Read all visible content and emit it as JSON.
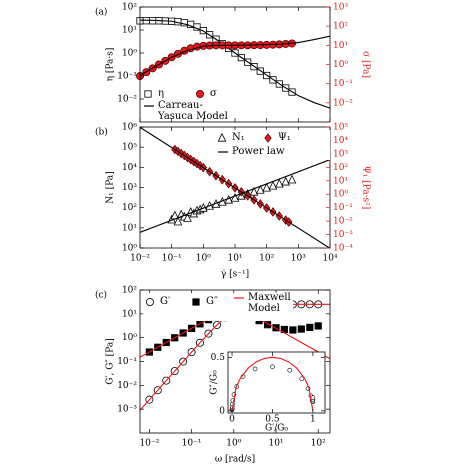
{
  "chart_data": [
    {
      "type": "scatter",
      "label": "(a)",
      "ylabel": "η [Pa·s]",
      "y2label": "σ [Pa]",
      "xlog": true,
      "ylog": true,
      "y2log": true,
      "xlim": [
        0.01,
        10000
      ],
      "ylim": [
        0.001,
        100
      ],
      "yticks": [
        {
          "value": 0.01,
          "label": "10⁻²"
        },
        {
          "value": 0.1,
          "label": "10⁻¹"
        },
        {
          "value": 1,
          "label": "10⁰"
        },
        {
          "value": 10,
          "label": "10¹"
        },
        {
          "value": 100,
          "label": "10²"
        }
      ],
      "y2lim": [
        0.001,
        1000
      ],
      "y2ticks": [
        {
          "value": 0.01,
          "label": "10⁻²"
        },
        {
          "value": 0.1,
          "label": "10⁻¹"
        },
        {
          "value": 1,
          "label": "10⁰"
        },
        {
          "value": 10,
          "label": "10¹"
        },
        {
          "value": 100,
          "label": "10²"
        },
        {
          "value": 1000,
          "label": "10³"
        }
      ],
      "series": [
        {
          "name": "η",
          "marker": "square-open",
          "color": "#000000",
          "x": [
            0.01,
            0.0158,
            0.0251,
            0.0398,
            0.0631,
            0.1,
            0.158,
            0.251,
            0.398,
            0.631,
            1,
            1.58,
            2.51,
            3.98,
            6.31,
            10,
            15.8,
            25.1,
            39.8,
            63.1,
            100,
            158,
            251,
            398,
            631
          ],
          "values": [
            25,
            25.3,
            25.1,
            25.1,
            24.6,
            24,
            22.8,
            20.7,
            17.6,
            13.5,
            9.4,
            6.2,
            3.98,
            2.51,
            1.58,
            1.0,
            0.63,
            0.4,
            0.256,
            0.163,
            0.105,
            0.068,
            0.045,
            0.03,
            0.02
          ]
        },
        {
          "name": "Carreau-Yasuca Model",
          "style": "line",
          "color": "#000000",
          "x": [
            0.01,
            0.0316,
            0.1,
            0.316,
            1,
            3.16,
            10,
            31.6,
            100,
            316,
            1000,
            3162,
            10000
          ],
          "values": [
            27,
            26,
            24,
            17,
            9,
            3.2,
            1.0,
            0.33,
            0.11,
            0.037,
            0.014,
            0.007,
            0.004
          ]
        },
        {
          "name": "σ",
          "marker": "circle-filled",
          "color": "#e41a1c",
          "axis": "y2",
          "x": [
            0.01,
            0.0158,
            0.0251,
            0.0398,
            0.0631,
            0.1,
            0.158,
            0.251,
            0.398,
            0.631,
            1,
            1.58,
            2.51,
            3.98,
            6.31,
            10,
            15.8,
            25.1,
            39.8,
            63.1,
            100,
            158,
            251,
            398,
            631
          ],
          "values": [
            0.25,
            0.4,
            0.63,
            1.0,
            1.55,
            2.4,
            3.6,
            5.2,
            7.0,
            8.5,
            9.4,
            9.8,
            10,
            10,
            10,
            10,
            10,
            10,
            10.2,
            10.3,
            10.5,
            10.8,
            11.2,
            11.8,
            12.5
          ]
        },
        {
          "style": "line",
          "color": "#000000",
          "axis": "y2",
          "x": [
            0.01,
            0.0316,
            0.1,
            0.316,
            1,
            3.16,
            10,
            31.6,
            100,
            316,
            1000,
            3162,
            10000
          ],
          "values": [
            0.27,
            0.82,
            2.4,
            5.4,
            9,
            10.1,
            10,
            10.4,
            11,
            11.7,
            14,
            20,
            30
          ]
        }
      ]
    },
    {
      "type": "scatter",
      "label": "(b)",
      "xlabel": "γ̇ [s⁻¹]",
      "ylabel": "N₁ [Pa]",
      "y2label": "Ψ₁ [Pa·s²]",
      "xlog": true,
      "ylog": true,
      "y2log": true,
      "xlim": [
        0.01,
        10000
      ],
      "xticks": [
        {
          "value": 0.01,
          "label": "10⁻²"
        },
        {
          "value": 0.1,
          "label": "10⁻¹"
        },
        {
          "value": 1,
          "label": "10⁰"
        },
        {
          "value": 10,
          "label": "10¹"
        },
        {
          "value": 100,
          "label": "10²"
        },
        {
          "value": 1000,
          "label": "10³"
        },
        {
          "value": 10000,
          "label": "10⁴"
        }
      ],
      "ylim": [
        1,
        1000000
      ],
      "yticks": [
        {
          "value": 1,
          "label": "10⁰"
        },
        {
          "value": 10,
          "label": "10¹"
        },
        {
          "value": 100,
          "label": "10²"
        },
        {
          "value": 1000,
          "label": "10³"
        },
        {
          "value": 10000,
          "label": "10⁴"
        },
        {
          "value": 100000,
          "label": "10⁵"
        },
        {
          "value": 1000000,
          "label": "10⁶"
        }
      ],
      "y2lim": [
        0.0001,
        100000
      ],
      "y2ticks": [
        {
          "value": 0.0001,
          "label": "10⁻⁴"
        },
        {
          "value": 0.001,
          "label": "10⁻³"
        },
        {
          "value": 0.01,
          "label": "10⁻²"
        },
        {
          "value": 0.1,
          "label": "10⁻¹"
        },
        {
          "value": 1,
          "label": "10⁰"
        },
        {
          "value": 10,
          "label": "10¹"
        },
        {
          "value": 100,
          "label": "10²"
        },
        {
          "value": 1000,
          "label": "10³"
        },
        {
          "value": 10000,
          "label": "10⁴"
        },
        {
          "value": 100000,
          "label": "10⁵"
        }
      ],
      "series": [
        {
          "name": "N₁",
          "marker": "triangle-open",
          "color": "#000000",
          "x": [
            0.1,
            0.126,
            0.158,
            0.2,
            0.251,
            0.316,
            0.398,
            0.5,
            0.631,
            0.794,
            1,
            1.58,
            2.51,
            3.98,
            6.31,
            10,
            15.8,
            25.1,
            39.8,
            63.1,
            100,
            158,
            251,
            398,
            631
          ],
          "values": [
            25,
            40,
            20,
            45,
            35,
            30,
            60,
            50,
            70,
            80,
            95,
            120,
            150,
            190,
            240,
            300,
            380,
            470,
            600,
            750,
            950,
            1200,
            1500,
            1900,
            2400
          ]
        },
        {
          "name": "Ψ₁",
          "marker": "diamond-filled",
          "color": "#e41a1c",
          "axis": "y2",
          "x": [
            0.126,
            0.158,
            0.2,
            0.251,
            0.316,
            0.398,
            0.5,
            0.631,
            0.794,
            1,
            1.58,
            2.51,
            3.98,
            6.31,
            10,
            15.8,
            25.1,
            39.8,
            63.1,
            100,
            158,
            251,
            398,
            500
          ],
          "values": [
            2130,
            1510,
            1060,
            755,
            534,
            378,
            269,
            190,
            134,
            95,
            47.9,
            23.9,
            12,
            6.0,
            3.0,
            1.51,
            0.755,
            0.378,
            0.19,
            0.095,
            0.0479,
            0.0239,
            0.012,
            0.0085
          ]
        },
        {
          "name": "Power law",
          "style": "line",
          "color": "#000000",
          "x": [
            0.01,
            10000
          ],
          "values": [
            6,
            23900
          ]
        },
        {
          "style": "line",
          "color": "#000000",
          "axis": "y2",
          "x": [
            0.01,
            10000
          ],
          "values": [
            95000,
            9.5e-05
          ]
        }
      ]
    },
    {
      "type": "scatter",
      "label": "(c)",
      "xlabel": "ω [rad/s]",
      "ylabel": "G′, G″ [Pa]",
      "xlog": true,
      "ylog": true,
      "xlim": [
        0.006,
        190
      ],
      "xticks": [
        {
          "value": 0.01,
          "label": "10⁻²"
        },
        {
          "value": 0.1,
          "label": "10⁻¹"
        },
        {
          "value": 1,
          "label": "10⁰"
        },
        {
          "value": 10,
          "label": "10¹"
        },
        {
          "value": 100,
          "label": "10²"
        }
      ],
      "ylim": [
        0.0001,
        100
      ],
      "yticks": [
        {
          "value": 0.001,
          "label": "10⁻³"
        },
        {
          "value": 0.01,
          "label": "10⁻²"
        },
        {
          "value": 0.1,
          "label": "10⁻¹"
        },
        {
          "value": 1,
          "label": "10⁰"
        },
        {
          "value": 10,
          "label": "10¹"
        },
        {
          "value": 100,
          "label": "10²"
        }
      ],
      "series": [
        {
          "name": "G′",
          "marker": "circle-open",
          "color": "#000000",
          "x": [
            0.01,
            0.0158,
            0.0251,
            0.0398,
            0.0631,
            0.1,
            0.158,
            0.251,
            0.398,
            0.631,
            1,
            1.58,
            2.51,
            3.98,
            6.31,
            10,
            15.8,
            25.1,
            39.8,
            63.1,
            100
          ],
          "values": [
            0.0025,
            0.00625,
            0.0158,
            0.0395,
            0.0991,
            0.2475,
            0.61,
            1.48,
            3.41,
            7.12,
            12.5,
            17.86,
            21.58,
            23.51,
            24.39,
            24.75,
            24.9,
            24.96,
            24.98,
            24.99,
            25.0
          ]
        },
        {
          "name": "G″",
          "marker": "square-filled",
          "color": "#000000",
          "x": [
            0.01,
            0.0158,
            0.0251,
            0.0398,
            0.0631,
            0.1,
            0.158,
            0.251,
            0.398,
            0.631,
            1,
            1.58,
            2.51,
            3.98,
            6.31,
            10,
            15.8,
            25.1,
            39.8,
            63.1,
            100
          ],
          "values": [
            0.25,
            0.395,
            0.627,
            0.99,
            1.57,
            2.45,
            3.8,
            5.7,
            8.0,
            9.8,
            10.3,
            9.5,
            7.5,
            5.2,
            3.5,
            2.6,
            2.2,
            2.1,
            2.3,
            2.7,
            3.1
          ]
        },
        {
          "name": "Maxwell Model",
          "style": "line",
          "color": "#e41a1c",
          "x": [
            0.006,
            0.01,
            0.0158,
            0.0251,
            0.0398,
            0.0631,
            0.1,
            0.158,
            0.251,
            0.398,
            0.631,
            1,
            1.58,
            2.51,
            3.98,
            6.31,
            10,
            15.8,
            25.1,
            39.8,
            63.1,
            100,
            190
          ],
          "values": [
            0.0009,
            0.0025,
            0.00625,
            0.0158,
            0.0395,
            0.0991,
            0.2475,
            0.61,
            1.48,
            3.41,
            7.12,
            12.5,
            17.86,
            21.58,
            23.51,
            24.39,
            24.75,
            24.9,
            24.96,
            24.98,
            24.99,
            25.0,
            25.0
          ]
        },
        {
          "style": "line",
          "color": "#e41a1c",
          "x": [
            0.006,
            0.01,
            0.0158,
            0.0251,
            0.0398,
            0.0631,
            0.1,
            0.158,
            0.251,
            0.398,
            0.631,
            1,
            1.58,
            2.51,
            3.98,
            6.31,
            10,
            15.8,
            25.1,
            39.8,
            63.1,
            100,
            190
          ],
          "values": [
            0.15,
            0.25,
            0.395,
            0.627,
            0.993,
            1.57,
            2.475,
            3.86,
            5.89,
            8.56,
            11.3,
            12.5,
            11.3,
            8.57,
            5.9,
            3.87,
            2.475,
            1.58,
            0.996,
            0.628,
            0.396,
            0.25,
            0.13
          ]
        }
      ]
    },
    {
      "type": "scatter",
      "xlabel": "G′/G₀",
      "ylabel": "G″/G₀",
      "xlim": [
        -0.05,
        1.15
      ],
      "ylim": [
        -0.02,
        0.55
      ],
      "xticks": [
        0,
        0.5,
        1
      ],
      "yticks": [
        0,
        0.5
      ],
      "series": [
        {
          "marker": "circle-open",
          "color": "#000000",
          "x": [
            0.0001,
            0.00025,
            0.00063,
            0.00158,
            0.00396,
            0.0099,
            0.0244,
            0.0592,
            0.136,
            0.285,
            0.5,
            0.714,
            0.863,
            0.94,
            0.976,
            0.99,
            0.996,
            0.998,
            0.999,
            1.0,
            1.0
          ],
          "values": [
            0.01,
            0.0158,
            0.0251,
            0.0396,
            0.0628,
            0.098,
            0.152,
            0.228,
            0.32,
            0.392,
            0.412,
            0.38,
            0.3,
            0.208,
            0.14,
            0.104,
            0.088,
            0.084,
            0.092,
            0.108,
            0.124
          ]
        },
        {
          "style": "line",
          "color": "#e41a1c",
          "x": [
            0,
            0.05,
            0.1,
            0.2,
            0.3,
            0.4,
            0.5,
            0.6,
            0.7,
            0.8,
            0.9,
            0.95,
            1
          ],
          "values": [
            0,
            0.218,
            0.3,
            0.4,
            0.458,
            0.49,
            0.5,
            0.49,
            0.458,
            0.4,
            0.3,
            0.218,
            0
          ]
        }
      ]
    }
  ]
}
